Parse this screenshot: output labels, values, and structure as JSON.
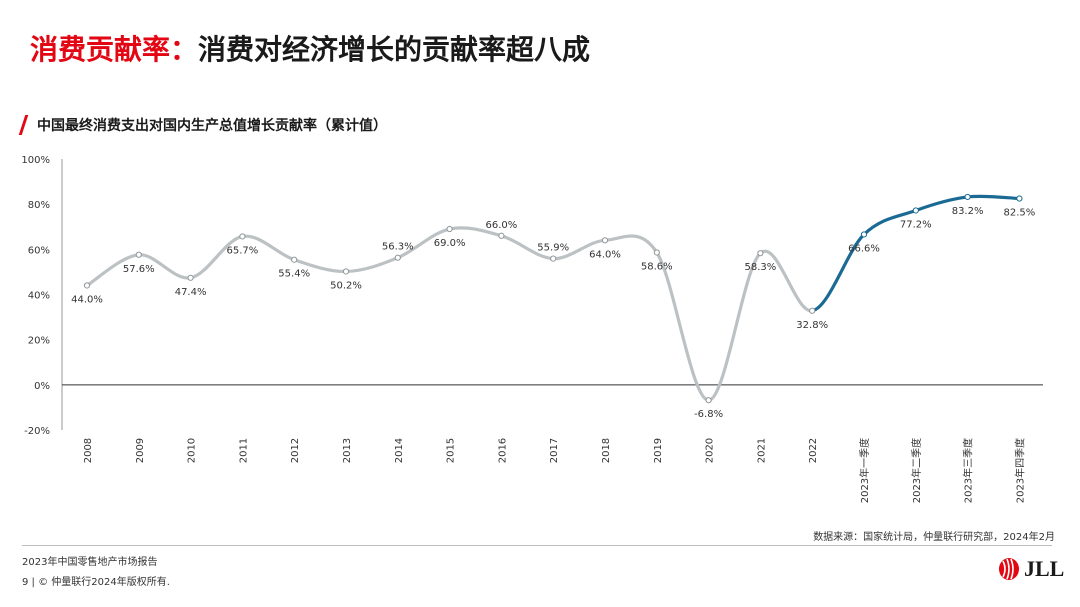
{
  "header": {
    "title_highlight": "消费贡献率：",
    "title_rest": "消费对经济增长的贡献率超八成",
    "title_color": "#e30613"
  },
  "chart_data": {
    "type": "line",
    "title": "中国最终消费支出对国内生产总值增长贡献率（累计值）",
    "xlabel": "",
    "ylabel": "",
    "ylim": [
      -20,
      100
    ],
    "yticks": [
      "100%",
      "80%",
      "60%",
      "40%",
      "20%",
      "0%",
      "-20%"
    ],
    "ytick_values": [
      100,
      80,
      60,
      40,
      20,
      0,
      -20
    ],
    "categories": [
      "2008",
      "2009",
      "2010",
      "2011",
      "2012",
      "2013",
      "2014",
      "2015",
      "2016",
      "2017",
      "2018",
      "2019",
      "2020",
      "2021",
      "2022",
      "2023年一季度",
      "2023年二季度",
      "2023年三季度",
      "2023年四季度"
    ],
    "values": [
      44.0,
      57.6,
      47.4,
      65.7,
      55.4,
      50.2,
      56.3,
      69.0,
      66.0,
      55.9,
      64.0,
      58.6,
      -6.8,
      58.3,
      32.8,
      66.6,
      77.2,
      83.2,
      82.5
    ],
    "data_labels": [
      "44.0%",
      "57.6%",
      "47.4%",
      "65.7%",
      "55.4%",
      "50.2%",
      "56.3%",
      "69.0%",
      "66.0%",
      "55.9%",
      "64.0%",
      "58.6%",
      "-6.8%",
      "58.3%",
      "32.8%",
      "66.6%",
      "77.2%",
      "83.2%",
      "82.5%"
    ],
    "label_positions": [
      "below",
      "below",
      "below",
      "below",
      "below",
      "below",
      "above",
      "below",
      "above",
      "above",
      "below",
      "below",
      "below",
      "below",
      "below",
      "below",
      "below",
      "below",
      "below"
    ],
    "highlight_from_index": 14,
    "colors": {
      "base": "#bcc1c3",
      "highlight": "#1a6a93",
      "marker": "#ffffff"
    },
    "grid": false
  },
  "source": "数据来源：国家统计局，仲量联行研究部，2024年2月",
  "footer": {
    "report": "2023年中国零售地产市场报告",
    "copyright": "9 | © 仲量联行2024年版权所有."
  },
  "logo": {
    "text": "JLL",
    "color": "#e30613",
    "icon": "jll-logo-icon"
  }
}
